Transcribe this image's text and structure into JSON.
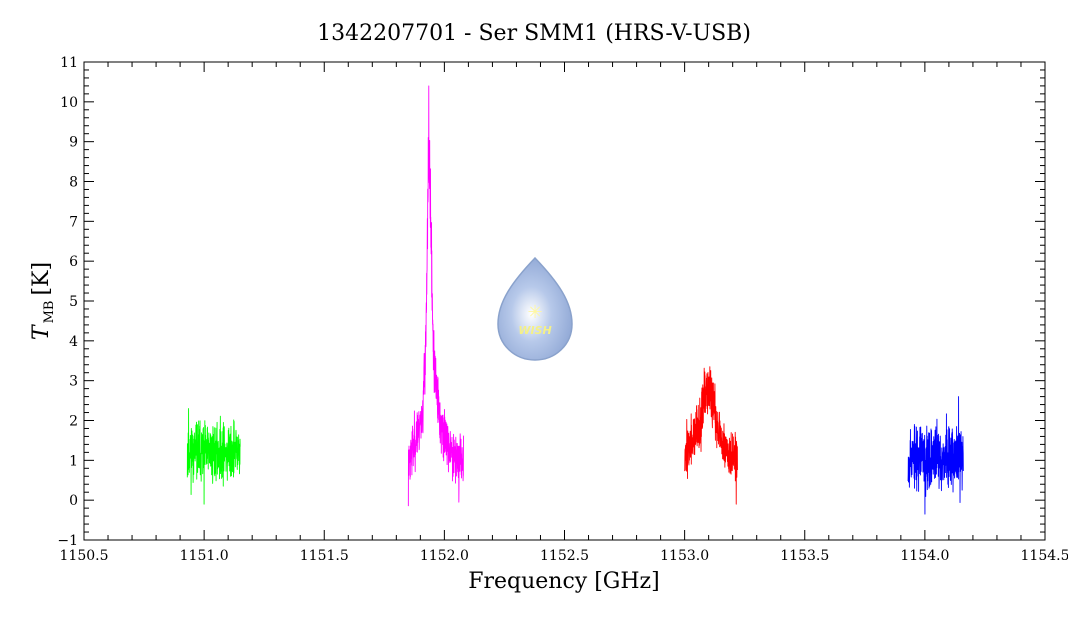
{
  "chart_data": {
    "type": "line",
    "title": "1342207701 - Ser SMM1 (HRS-V-USB)",
    "xlabel": "Frequency [GHz]",
    "ylabel_main": "T",
    "ylabel_sub": "MB",
    "ylabel_unit": "[K]",
    "xlim": [
      1150.5,
      1154.5
    ],
    "ylim": [
      -1,
      11
    ],
    "x_ticks": [
      "1150.5",
      "1151.0",
      "1151.5",
      "1152.0",
      "1152.5",
      "1153.0",
      "1153.5",
      "1154.0",
      "1154.5"
    ],
    "x_tick_values": [
      1150.5,
      1151.0,
      1151.5,
      1152.0,
      1152.5,
      1153.0,
      1153.5,
      1154.0,
      1154.5
    ],
    "y_ticks": [
      "−1",
      "0",
      "1",
      "2",
      "3",
      "4",
      "5",
      "6",
      "7",
      "8",
      "9",
      "10",
      "11"
    ],
    "y_tick_values": [
      -1,
      0,
      1,
      2,
      3,
      4,
      5,
      6,
      7,
      8,
      9,
      10,
      11
    ],
    "logo_text": "WISH",
    "series": [
      {
        "color": "#00ff00",
        "x_range": [
          1150.93,
          1151.15
        ],
        "profile": [
          [
            1150.93,
            1.2
          ],
          [
            1151.15,
            1.2
          ]
        ],
        "noise": 0.35,
        "seed": 11,
        "extremes": [
          [
            1150.935,
            2.3
          ],
          [
            1151.0,
            -0.1
          ],
          [
            1151.08,
            1.95
          ]
        ]
      },
      {
        "color": "#ff00ff",
        "x_range": [
          1151.85,
          1152.08
        ],
        "profile": [
          [
            1151.85,
            1.0
          ],
          [
            1151.88,
            1.5
          ],
          [
            1151.91,
            2.2
          ],
          [
            1151.925,
            4.5
          ],
          [
            1151.935,
            9.0
          ],
          [
            1151.945,
            6.5
          ],
          [
            1151.955,
            3.5
          ],
          [
            1151.98,
            2.0
          ],
          [
            1152.02,
            1.3
          ],
          [
            1152.08,
            0.9
          ]
        ],
        "noise": 0.3,
        "seed": 23,
        "extremes": [
          [
            1151.935,
            10.4
          ],
          [
            1151.85,
            -0.15
          ],
          [
            1152.06,
            -0.05
          ]
        ]
      },
      {
        "color": "#ff0000",
        "x_range": [
          1153.0,
          1153.22
        ],
        "profile": [
          [
            1153.0,
            1.2
          ],
          [
            1153.05,
            1.6
          ],
          [
            1153.08,
            2.4
          ],
          [
            1153.1,
            2.8
          ],
          [
            1153.12,
            2.3
          ],
          [
            1153.16,
            1.4
          ],
          [
            1153.22,
            1.0
          ]
        ],
        "noise": 0.3,
        "seed": 37,
        "extremes": [
          [
            1153.105,
            3.35
          ],
          [
            1153.215,
            -0.1
          ]
        ]
      },
      {
        "color": "#0000ff",
        "x_range": [
          1153.93,
          1154.16
        ],
        "profile": [
          [
            1153.93,
            1.1
          ],
          [
            1154.16,
            1.1
          ]
        ],
        "noise": 0.4,
        "seed": 53,
        "extremes": [
          [
            1154.14,
            2.6
          ],
          [
            1154.0,
            -0.35
          ]
        ]
      }
    ]
  }
}
